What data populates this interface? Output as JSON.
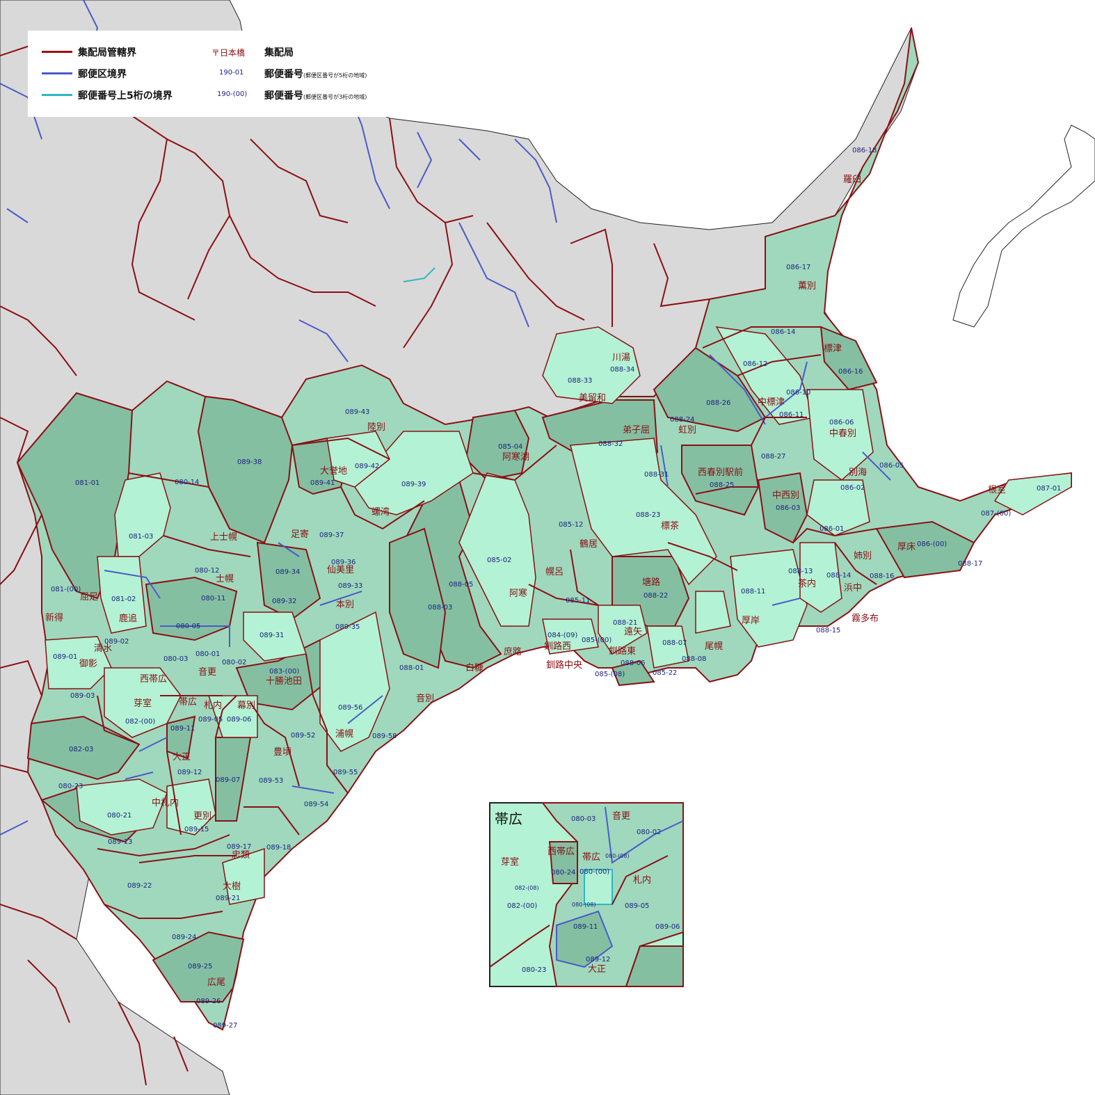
{
  "legend": {
    "items": [
      {
        "label": "集配局管轄界",
        "color": "#9b1018"
      },
      {
        "label": "郵便区境界",
        "color": "#4a5bc8"
      },
      {
        "label": "郵便番号上5桁の境界",
        "color": "#2fb6c4"
      }
    ],
    "office_sample": "〒日本橋",
    "office_label": "集配局",
    "code_sample_5": "190-01",
    "code_label_5": "郵便番号",
    "code_note_5": "(郵便区番号が5桁の地域)",
    "code_sample_3": "190-(00)",
    "code_label_3": "郵便番号",
    "code_note_3": "(郵便区番号が3桁の地域)"
  },
  "colors": {
    "dark": "#84bfa2",
    "medium": "#9fd8bd",
    "light": "#b3f2d4",
    "gray": "#d9d9d9",
    "collection_boundary": "#9b1018",
    "postal_boundary": "#4a5bc8",
    "five_digit_boundary": "#2fb6c4"
  },
  "offices": [
    {
      "name": "羅臼"
    },
    {
      "name": "薫別"
    },
    {
      "name": "標津"
    },
    {
      "name": "中標津"
    },
    {
      "name": "川湯"
    },
    {
      "name": "美留和"
    },
    {
      "name": "弟子屈"
    },
    {
      "name": "虹別"
    },
    {
      "name": "中春別"
    },
    {
      "name": "陸別"
    },
    {
      "name": "阿寒湖"
    },
    {
      "name": "大誉地"
    },
    {
      "name": "西春別駅前"
    },
    {
      "name": "別海"
    },
    {
      "name": "中西別"
    },
    {
      "name": "根室"
    },
    {
      "name": "螺湾"
    },
    {
      "name": "標茶"
    },
    {
      "name": "足寄"
    },
    {
      "name": "上士幌"
    },
    {
      "name": "鶴居"
    },
    {
      "name": "厚床"
    },
    {
      "name": "姉別"
    },
    {
      "name": "仙美里"
    },
    {
      "name": "士幌"
    },
    {
      "name": "幌呂"
    },
    {
      "name": "茶内"
    },
    {
      "name": "浜中"
    },
    {
      "name": "塘路"
    },
    {
      "name": "屈足"
    },
    {
      "name": "阿寒"
    },
    {
      "name": "本別"
    },
    {
      "name": "鹿追"
    },
    {
      "name": "新得"
    },
    {
      "name": "霧多布"
    },
    {
      "name": "厚岸"
    },
    {
      "name": "遠矢"
    },
    {
      "name": "清水"
    },
    {
      "name": "釧路西"
    },
    {
      "name": "尾幌"
    },
    {
      "name": "庶路"
    },
    {
      "name": "釧路東"
    },
    {
      "name": "音更"
    },
    {
      "name": "釧路中央"
    },
    {
      "name": "白糠"
    },
    {
      "name": "御影"
    },
    {
      "name": "西帯広"
    },
    {
      "name": "十勝池田"
    },
    {
      "name": "帯広"
    },
    {
      "name": "札内"
    },
    {
      "name": "幕別"
    },
    {
      "name": "芽室"
    },
    {
      "name": "音別"
    },
    {
      "name": "浦幌"
    },
    {
      "name": "大正"
    },
    {
      "name": "豊頃"
    },
    {
      "name": "中札内"
    },
    {
      "name": "更別"
    },
    {
      "name": "忠類"
    },
    {
      "name": "大樹"
    },
    {
      "name": "広尾"
    }
  ],
  "codes": [
    "086-18",
    "086-17",
    "086-14",
    "086-16",
    "086-12",
    "086-10",
    "086-11",
    "086-06",
    "086-05",
    "086-02",
    "086-03",
    "086-01",
    "086-(00)",
    "087-01",
    "087-(00)",
    "088-17",
    "088-16",
    "088-14",
    "088-13",
    "088-15",
    "088-11",
    "088-34",
    "088-33",
    "088-24",
    "088-32",
    "088-26",
    "088-27",
    "088-25",
    "088-31",
    "088-23",
    "088-22",
    "088-21",
    "088-07",
    "088-08",
    "088-06",
    "085-22",
    "085-(08)",
    "085-(00)",
    "084-(09)",
    "085-11",
    "085-12",
    "085-02",
    "085-04",
    "088-05",
    "088-03",
    "088-01",
    "089-43",
    "089-42",
    "089-41",
    "089-38",
    "089-39",
    "089-37",
    "089-36",
    "089-34",
    "089-33",
    "089-32",
    "089-35",
    "089-31",
    "083-(00)",
    "089-56",
    "089-58",
    "089-55",
    "089-52",
    "089-53",
    "089-54",
    "089-07",
    "089-06",
    "089-05",
    "089-11",
    "089-12",
    "089-15",
    "089-13",
    "089-17",
    "089-18",
    "089-21",
    "089-22",
    "089-24",
    "089-25",
    "089-26",
    "089-27",
    "080-14",
    "081-01",
    "081-03",
    "080-12",
    "080-11",
    "081-(00)",
    "081-02",
    "080-05",
    "089-02",
    "089-01",
    "080-03",
    "080-01",
    "080-02",
    "089-03",
    "082-(00)",
    "082-03",
    "080-23",
    "080-21"
  ],
  "inset": {
    "title": "帯広",
    "offices": [
      {
        "name": "音更"
      },
      {
        "name": "芽室"
      },
      {
        "name": "西帯広"
      },
      {
        "name": "帯広"
      },
      {
        "name": "札内"
      },
      {
        "name": "大正"
      }
    ],
    "codes": [
      "080-03",
      "080-02",
      "080-(08)",
      "080-24",
      "080-(00)",
      "082-(08)",
      "082-(00)",
      "080-(08)",
      "089-05",
      "089-06",
      "089-11",
      "089-12",
      "080-23"
    ]
  }
}
